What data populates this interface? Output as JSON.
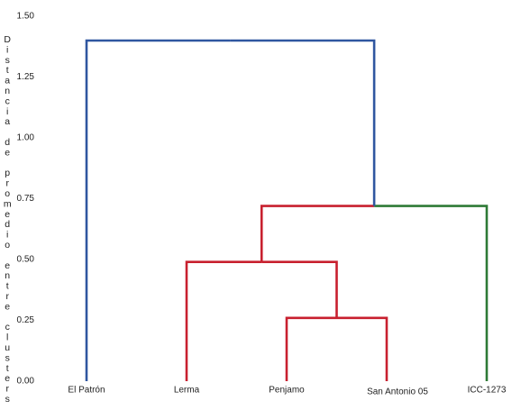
{
  "chart_data": {
    "type": "dendrogram",
    "y_label": "Distancia de promedio entre clusters",
    "ylim": [
      0,
      1.5
    ],
    "yticks": [
      {
        "value": 0,
        "label": "0.00"
      },
      {
        "value": 0.25,
        "label": "0.25"
      },
      {
        "value": 0.5,
        "label": "0.50"
      },
      {
        "value": 0.75,
        "label": "0.75"
      },
      {
        "value": 1,
        "label": "1.00"
      },
      {
        "value": 1.25,
        "label": "1.25"
      },
      {
        "value": 1.5,
        "label": "1.50"
      }
    ],
    "leaves": [
      "El Patrón",
      "Lerma",
      "Penjamo",
      "San Antonio 05",
      "ICC-1273"
    ],
    "merges": [
      {
        "children": [
          2,
          3
        ],
        "height": 0.26,
        "colors": [
          "#c8202f",
          "#c8202f"
        ]
      },
      {
        "children": [
          1,
          5
        ],
        "height": 0.49,
        "colors": [
          "#c8202f",
          "#c8202f"
        ]
      },
      {
        "children": [
          6,
          4
        ],
        "height": 0.72,
        "colors": [
          "#c8202f",
          "#2e7a36"
        ]
      },
      {
        "children": [
          0,
          7
        ],
        "height": 1.4,
        "colors": [
          "#2f56a0",
          "#2f56a0"
        ]
      }
    ]
  }
}
